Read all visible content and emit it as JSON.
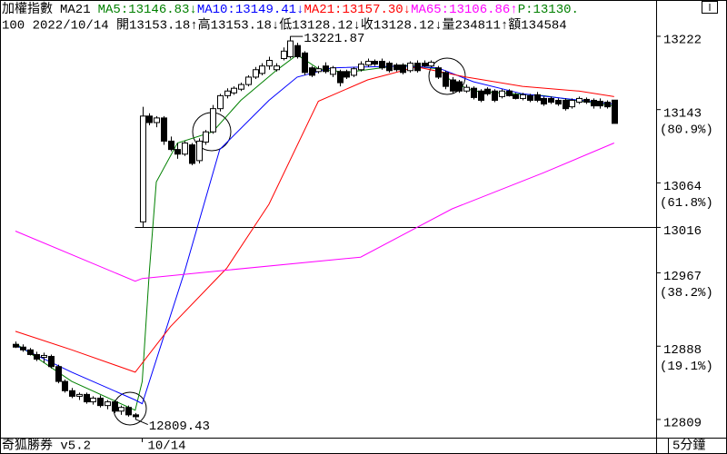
{
  "chart_data": {
    "type": "candlestick",
    "title": "加權指數",
    "indicator": "MA21",
    "price_label": "P:13130.",
    "price_color": "#008000",
    "info_line": "100 2022/10/14 開13153.18↑高13153.18↓低13128.12↓收13128.12↓量234811↑額134584",
    "software": "奇狐勝券 v5.2",
    "period": "5分鐘",
    "up_color": "#ffffff",
    "down_color": "#000000",
    "categories": [
      null,
      null,
      null,
      null,
      null,
      null,
      null,
      null,
      null,
      null,
      null,
      null,
      null,
      null,
      null,
      null,
      null,
      null,
      "10/14",
      null,
      null,
      null,
      null,
      null,
      null,
      null,
      null,
      null,
      null,
      null,
      null,
      null,
      null,
      null,
      null,
      null,
      null,
      null,
      null,
      null,
      null,
      null,
      null,
      null,
      null,
      null,
      null,
      null,
      null,
      null,
      null,
      null,
      null,
      null,
      null,
      null,
      null,
      null,
      null,
      null,
      null,
      null,
      null,
      null,
      null,
      null,
      null,
      null,
      null,
      null,
      null,
      null,
      null,
      null,
      null,
      null,
      null,
      null,
      null,
      null,
      null,
      null,
      null,
      null,
      null,
      null
    ],
    "open": [
      12890,
      12887,
      12884,
      12879,
      12876,
      12877,
      12866,
      12850,
      12840,
      12834,
      12836,
      12828,
      12832,
      12824,
      12828,
      12818,
      12822,
      12814,
      13022,
      13136,
      13129,
      13134,
      13109,
      13100,
      13095,
      13105,
      13088,
      13108,
      13119,
      13144,
      13158,
      13161,
      13165,
      13170,
      13178,
      13182,
      13190,
      13186,
      13198,
      13200,
      13212,
      13204,
      13188,
      13184,
      13190,
      13181,
      13184,
      13184,
      13180,
      13186,
      13191,
      13195,
      13195,
      13193,
      13191,
      13191,
      13185,
      13193,
      13193,
      13190,
      13188,
      13183,
      13175,
      13173,
      13163,
      13166,
      13163,
      13165,
      13163,
      13157,
      13163,
      13159,
      13155,
      13158,
      13159,
      13155,
      13155,
      13153,
      13153,
      13146,
      13151,
      13154,
      13153,
      13152,
      13151,
      13153.18
    ],
    "high": [
      12893,
      12890,
      12886,
      12882,
      12881,
      12879,
      12868,
      12852,
      12843,
      12838,
      12838,
      12834,
      12835,
      12830,
      12830,
      12824,
      12824,
      12816,
      13146,
      13139,
      13136,
      13136,
      13114,
      13107,
      13109,
      13107,
      13112,
      13121,
      13148,
      13160,
      13166,
      13168,
      13172,
      13180,
      13189,
      13193,
      13200,
      13193,
      13210,
      13221.87,
      13215,
      13206,
      13190,
      13190,
      13194,
      13190,
      13186,
      13186,
      13189,
      13195,
      13198,
      13197,
      13198,
      13195,
      13193,
      13193,
      13195,
      13196,
      13196,
      13196,
      13190,
      13185,
      13178,
      13175,
      13170,
      13168,
      13165,
      13167,
      13165,
      13165,
      13165,
      13161,
      13161,
      13160,
      13162,
      13157,
      13157,
      13155,
      13155,
      13155,
      13157,
      13156,
      13155,
      13155,
      13153,
      13153.18
    ],
    "low": [
      12886,
      12882,
      12878,
      12872,
      12870,
      12864,
      12848,
      12838,
      12832,
      12830,
      12826,
      12825,
      12822,
      12820,
      12816,
      12814,
      12812,
      12809.43,
      13016,
      13126,
      13124,
      13105,
      13098,
      13090,
      13093,
      13083,
      13085,
      13105,
      13117,
      13141,
      13155,
      13159,
      13163,
      13168,
      13176,
      13180,
      13186,
      13184,
      13196,
      13198,
      13198,
      13180,
      13178,
      13182,
      13182,
      13178,
      13168,
      13176,
      13178,
      13184,
      13189,
      13190,
      13186,
      13183,
      13184,
      13181,
      13183,
      13183,
      13189,
      13189,
      13176,
      13165,
      13160,
      13161,
      13161,
      13154,
      13151,
      13158,
      13151,
      13155,
      13157,
      13154,
      13153,
      13151,
      13151,
      13147,
      13149,
      13147,
      13142,
      13144,
      13149,
      13149,
      13144,
      13144,
      13144,
      13128.12
    ],
    "close": [
      12887,
      12884,
      12879,
      12874,
      12878,
      12866,
      12850,
      12840,
      12834,
      12836,
      12828,
      12832,
      12824,
      12828,
      12818,
      12822,
      12814,
      12812,
      13136,
      13129,
      13134,
      13109,
      13100,
      13095,
      13107,
      13085,
      13109,
      13119,
      13144,
      13158,
      13163,
      13166,
      13170,
      13178,
      13186,
      13190,
      13196,
      13190,
      13206,
      13217,
      13200,
      13183,
      13180,
      13187,
      13184,
      13188,
      13172,
      13178,
      13187,
      13192,
      13195,
      13192,
      13188,
      13185,
      13186,
      13183,
      13193,
      13185,
      13190,
      13194,
      13178,
      13168,
      13163,
      13163,
      13167,
      13156,
      13153,
      13160,
      13153,
      13163,
      13158,
      13155,
      13159,
      13153,
      13153,
      13149,
      13151,
      13149,
      13144,
      13153,
      13155,
      13151,
      13147,
      13147,
      13146,
      13128.12
    ],
    "series": [
      {
        "name": "MA5:13146.83↓",
        "color": "#008000",
        "x": [
          0,
          8,
          17,
          18,
          19,
          20,
          23,
          28,
          32,
          37,
          40,
          43,
          47,
          55,
          60,
          62,
          65,
          75,
          85
        ],
        "values": [
          12891,
          12850,
          12819,
          12850,
          12968,
          13065,
          13107,
          13119,
          13153,
          13185,
          13202,
          13187,
          13183,
          13191,
          13187,
          13173,
          13163,
          13158,
          13147
        ]
      },
      {
        "name": "MA10:13149.41↓",
        "color": "#0000ff",
        "x": [
          0,
          8,
          17,
          18,
          24,
          29,
          36,
          40,
          45,
          55,
          60,
          65,
          72,
          85
        ],
        "values": [
          12889,
          12860,
          12830,
          12826,
          12968,
          13100,
          13153,
          13178,
          13188,
          13190,
          13188,
          13173,
          13160,
          13149
        ]
      },
      {
        "name": "MA21:13157.30↓",
        "color": "#ff0000",
        "x": [
          0,
          8,
          17,
          22,
          30,
          36,
          43,
          50,
          57,
          64,
          72,
          80,
          85
        ],
        "values": [
          12904,
          12884,
          12860,
          12909,
          12972,
          13041,
          13152,
          13175,
          13189,
          13178,
          13168,
          13163,
          13157
        ]
      },
      {
        "name": "MA65:13106.86↑",
        "color": "#ff00ff",
        "x": [
          0,
          17,
          18,
          30,
          49,
          62,
          75,
          85
        ],
        "values": [
          13012,
          12958,
          12961,
          12970,
          12984,
          13036,
          13075,
          13107
        ]
      }
    ],
    "ylim": [
      12789.4,
      13243.5
    ],
    "yticks": [
      13222,
      13143,
      13064,
      13016,
      12967,
      12888,
      12809
    ],
    "fib_labels": [
      null,
      "(80.9%)",
      "(61.8%)",
      null,
      "(38.2%)",
      "(19.1%)",
      null
    ],
    "ref_line": 13016
  }
}
